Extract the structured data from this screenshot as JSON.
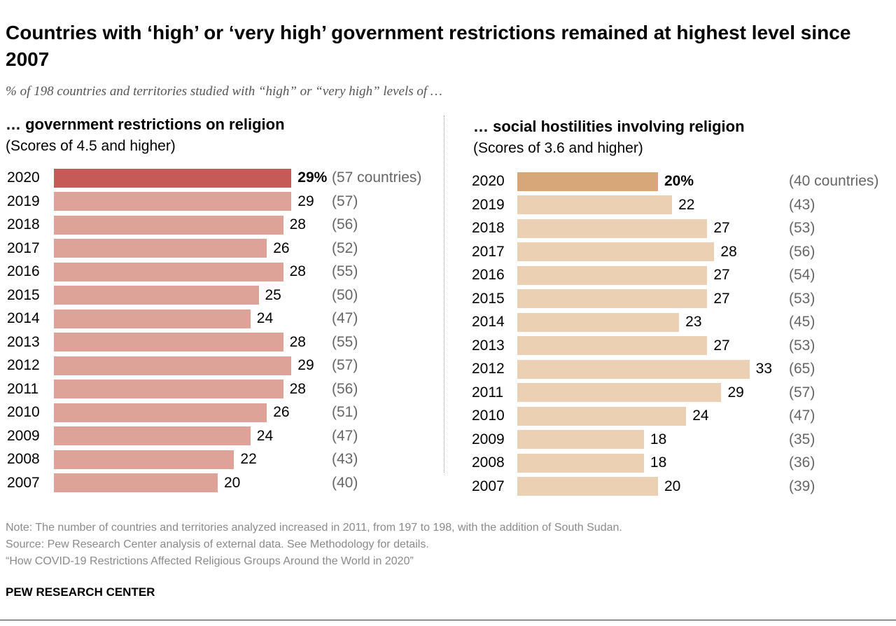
{
  "title": "Countries with ‘high’ or ‘very high’ government restrictions remained at highest level since 2007",
  "subtitle": "% of 198 countries and territories studied with “high” or “very high” levels of …",
  "notes": [
    "Note: The number of countries and territories analyzed increased in 2011, from 197 to 198, with the addition of South Sudan.",
    "Source: Pew Research Center analysis of external data. See Methodology for details.",
    "“How COVID-19 Restrictions Affected Religious Groups Around the World in 2020”"
  ],
  "brand": "PEW RESEARCH CENTER",
  "chart_data": [
    {
      "type": "bar",
      "orientation": "horizontal",
      "title": "… government restrictions on religion",
      "subtitle": "(Scores of 4.5 and higher)",
      "categories": [
        "2020",
        "2019",
        "2018",
        "2017",
        "2016",
        "2015",
        "2014",
        "2013",
        "2012",
        "2011",
        "2010",
        "2009",
        "2008",
        "2007"
      ],
      "values": [
        29,
        29,
        28,
        26,
        28,
        25,
        24,
        28,
        29,
        28,
        26,
        24,
        22,
        20
      ],
      "value_labels": [
        "29%",
        "29",
        "28",
        "26",
        "28",
        "25",
        "24",
        "28",
        "29",
        "28",
        "26",
        "24",
        "22",
        "20"
      ],
      "counts": [
        "(57 countries)",
        "(57)",
        "(56)",
        "(52)",
        "(55)",
        "(50)",
        "(47)",
        "(55)",
        "(57)",
        "(56)",
        "(51)",
        "(47)",
        "(43)",
        "(40)"
      ],
      "highlight_color": "#c55a57",
      "color": "#dea398"
    },
    {
      "type": "bar",
      "orientation": "horizontal",
      "title": "… social hostilities involving religion",
      "subtitle": "(Scores of 3.6 and higher)",
      "categories": [
        "2020",
        "2019",
        "2018",
        "2017",
        "2016",
        "2015",
        "2014",
        "2013",
        "2012",
        "2011",
        "2010",
        "2009",
        "2008",
        "2007"
      ],
      "values": [
        20,
        22,
        27,
        28,
        27,
        27,
        23,
        27,
        33,
        29,
        24,
        18,
        18,
        20
      ],
      "value_labels": [
        "20%",
        "22",
        "27",
        "28",
        "27",
        "27",
        "23",
        "27",
        "33",
        "29",
        "24",
        "18",
        "18",
        "20"
      ],
      "counts": [
        "(40 countries)",
        "(43)",
        "(53)",
        "(56)",
        "(54)",
        "(53)",
        "(45)",
        "(53)",
        "(65)",
        "(57)",
        "(47)",
        "(35)",
        "(36)",
        "(39)"
      ],
      "highlight_color": "#d7a77a",
      "color": "#ebd0b3"
    }
  ]
}
